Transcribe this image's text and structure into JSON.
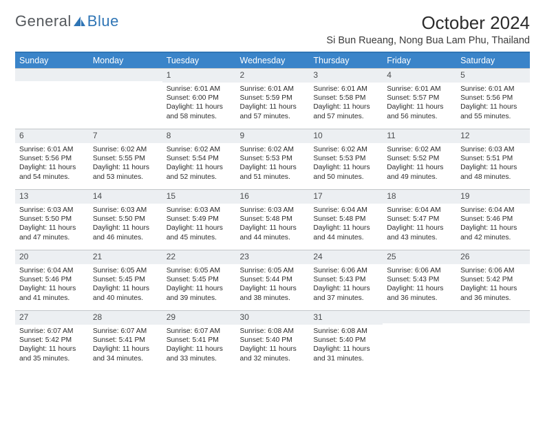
{
  "logo": {
    "text1": "General",
    "text2": "Blue"
  },
  "title": "October 2024",
  "location": "Si Bun Rueang, Nong Bua Lam Phu, Thailand",
  "colors": {
    "header_bg": "#3a84c9",
    "header_border": "#2f75b5",
    "daynum_bg": "#eceff2",
    "daynum_border": "#c2c6c9",
    "text": "#2b2b2b",
    "logo_gray": "#54585c",
    "logo_blue": "#2f75b5"
  },
  "weekdays": [
    "Sunday",
    "Monday",
    "Tuesday",
    "Wednesday",
    "Thursday",
    "Friday",
    "Saturday"
  ],
  "weeks": [
    [
      {
        "num": "",
        "lines": []
      },
      {
        "num": "",
        "lines": []
      },
      {
        "num": "1",
        "lines": [
          "Sunrise: 6:01 AM",
          "Sunset: 6:00 PM",
          "Daylight: 11 hours",
          "and 58 minutes."
        ]
      },
      {
        "num": "2",
        "lines": [
          "Sunrise: 6:01 AM",
          "Sunset: 5:59 PM",
          "Daylight: 11 hours",
          "and 57 minutes."
        ]
      },
      {
        "num": "3",
        "lines": [
          "Sunrise: 6:01 AM",
          "Sunset: 5:58 PM",
          "Daylight: 11 hours",
          "and 57 minutes."
        ]
      },
      {
        "num": "4",
        "lines": [
          "Sunrise: 6:01 AM",
          "Sunset: 5:57 PM",
          "Daylight: 11 hours",
          "and 56 minutes."
        ]
      },
      {
        "num": "5",
        "lines": [
          "Sunrise: 6:01 AM",
          "Sunset: 5:56 PM",
          "Daylight: 11 hours",
          "and 55 minutes."
        ]
      }
    ],
    [
      {
        "num": "6",
        "lines": [
          "Sunrise: 6:01 AM",
          "Sunset: 5:56 PM",
          "Daylight: 11 hours",
          "and 54 minutes."
        ]
      },
      {
        "num": "7",
        "lines": [
          "Sunrise: 6:02 AM",
          "Sunset: 5:55 PM",
          "Daylight: 11 hours",
          "and 53 minutes."
        ]
      },
      {
        "num": "8",
        "lines": [
          "Sunrise: 6:02 AM",
          "Sunset: 5:54 PM",
          "Daylight: 11 hours",
          "and 52 minutes."
        ]
      },
      {
        "num": "9",
        "lines": [
          "Sunrise: 6:02 AM",
          "Sunset: 5:53 PM",
          "Daylight: 11 hours",
          "and 51 minutes."
        ]
      },
      {
        "num": "10",
        "lines": [
          "Sunrise: 6:02 AM",
          "Sunset: 5:53 PM",
          "Daylight: 11 hours",
          "and 50 minutes."
        ]
      },
      {
        "num": "11",
        "lines": [
          "Sunrise: 6:02 AM",
          "Sunset: 5:52 PM",
          "Daylight: 11 hours",
          "and 49 minutes."
        ]
      },
      {
        "num": "12",
        "lines": [
          "Sunrise: 6:03 AM",
          "Sunset: 5:51 PM",
          "Daylight: 11 hours",
          "and 48 minutes."
        ]
      }
    ],
    [
      {
        "num": "13",
        "lines": [
          "Sunrise: 6:03 AM",
          "Sunset: 5:50 PM",
          "Daylight: 11 hours",
          "and 47 minutes."
        ]
      },
      {
        "num": "14",
        "lines": [
          "Sunrise: 6:03 AM",
          "Sunset: 5:50 PM",
          "Daylight: 11 hours",
          "and 46 minutes."
        ]
      },
      {
        "num": "15",
        "lines": [
          "Sunrise: 6:03 AM",
          "Sunset: 5:49 PM",
          "Daylight: 11 hours",
          "and 45 minutes."
        ]
      },
      {
        "num": "16",
        "lines": [
          "Sunrise: 6:03 AM",
          "Sunset: 5:48 PM",
          "Daylight: 11 hours",
          "and 44 minutes."
        ]
      },
      {
        "num": "17",
        "lines": [
          "Sunrise: 6:04 AM",
          "Sunset: 5:48 PM",
          "Daylight: 11 hours",
          "and 44 minutes."
        ]
      },
      {
        "num": "18",
        "lines": [
          "Sunrise: 6:04 AM",
          "Sunset: 5:47 PM",
          "Daylight: 11 hours",
          "and 43 minutes."
        ]
      },
      {
        "num": "19",
        "lines": [
          "Sunrise: 6:04 AM",
          "Sunset: 5:46 PM",
          "Daylight: 11 hours",
          "and 42 minutes."
        ]
      }
    ],
    [
      {
        "num": "20",
        "lines": [
          "Sunrise: 6:04 AM",
          "Sunset: 5:46 PM",
          "Daylight: 11 hours",
          "and 41 minutes."
        ]
      },
      {
        "num": "21",
        "lines": [
          "Sunrise: 6:05 AM",
          "Sunset: 5:45 PM",
          "Daylight: 11 hours",
          "and 40 minutes."
        ]
      },
      {
        "num": "22",
        "lines": [
          "Sunrise: 6:05 AM",
          "Sunset: 5:45 PM",
          "Daylight: 11 hours",
          "and 39 minutes."
        ]
      },
      {
        "num": "23",
        "lines": [
          "Sunrise: 6:05 AM",
          "Sunset: 5:44 PM",
          "Daylight: 11 hours",
          "and 38 minutes."
        ]
      },
      {
        "num": "24",
        "lines": [
          "Sunrise: 6:06 AM",
          "Sunset: 5:43 PM",
          "Daylight: 11 hours",
          "and 37 minutes."
        ]
      },
      {
        "num": "25",
        "lines": [
          "Sunrise: 6:06 AM",
          "Sunset: 5:43 PM",
          "Daylight: 11 hours",
          "and 36 minutes."
        ]
      },
      {
        "num": "26",
        "lines": [
          "Sunrise: 6:06 AM",
          "Sunset: 5:42 PM",
          "Daylight: 11 hours",
          "and 36 minutes."
        ]
      }
    ],
    [
      {
        "num": "27",
        "lines": [
          "Sunrise: 6:07 AM",
          "Sunset: 5:42 PM",
          "Daylight: 11 hours",
          "and 35 minutes."
        ]
      },
      {
        "num": "28",
        "lines": [
          "Sunrise: 6:07 AM",
          "Sunset: 5:41 PM",
          "Daylight: 11 hours",
          "and 34 minutes."
        ]
      },
      {
        "num": "29",
        "lines": [
          "Sunrise: 6:07 AM",
          "Sunset: 5:41 PM",
          "Daylight: 11 hours",
          "and 33 minutes."
        ]
      },
      {
        "num": "30",
        "lines": [
          "Sunrise: 6:08 AM",
          "Sunset: 5:40 PM",
          "Daylight: 11 hours",
          "and 32 minutes."
        ]
      },
      {
        "num": "31",
        "lines": [
          "Sunrise: 6:08 AM",
          "Sunset: 5:40 PM",
          "Daylight: 11 hours",
          "and 31 minutes."
        ]
      },
      {
        "num": "",
        "lines": []
      },
      {
        "num": "",
        "lines": []
      }
    ]
  ]
}
